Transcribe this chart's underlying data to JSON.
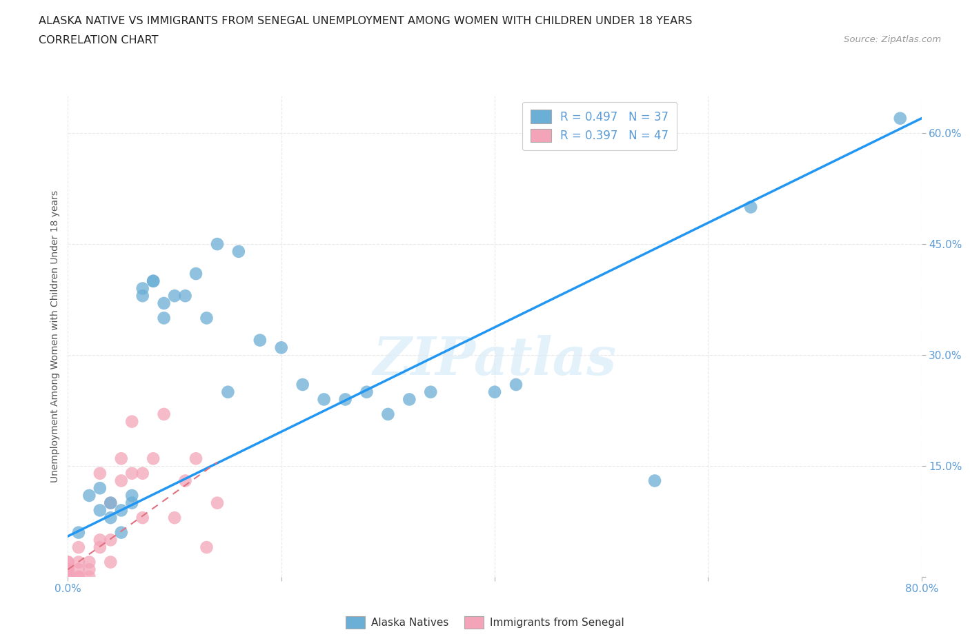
{
  "title_line1": "ALASKA NATIVE VS IMMIGRANTS FROM SENEGAL UNEMPLOYMENT AMONG WOMEN WITH CHILDREN UNDER 18 YEARS",
  "title_line2": "CORRELATION CHART",
  "source": "Source: ZipAtlas.com",
  "ylabel": "Unemployment Among Women with Children Under 18 years",
  "watermark": "ZIPatlas",
  "xlim": [
    0.0,
    0.8
  ],
  "ylim": [
    0.0,
    0.65
  ],
  "blue_color": "#6baed6",
  "pink_color": "#f4a4b8",
  "line_blue": "#2196F3",
  "line_pink": "#e07080",
  "background": "#ffffff",
  "grid_color": "#e8e8e8",
  "alaska_x": [
    0.01,
    0.02,
    0.03,
    0.03,
    0.04,
    0.04,
    0.05,
    0.05,
    0.06,
    0.06,
    0.07,
    0.07,
    0.08,
    0.08,
    0.09,
    0.09,
    0.1,
    0.11,
    0.12,
    0.13,
    0.14,
    0.15,
    0.16,
    0.18,
    0.2,
    0.22,
    0.24,
    0.26,
    0.28,
    0.3,
    0.32,
    0.34,
    0.4,
    0.42,
    0.55,
    0.64,
    0.78
  ],
  "alaska_y": [
    0.06,
    0.11,
    0.12,
    0.09,
    0.1,
    0.08,
    0.09,
    0.06,
    0.11,
    0.1,
    0.38,
    0.39,
    0.4,
    0.4,
    0.37,
    0.35,
    0.38,
    0.38,
    0.41,
    0.35,
    0.45,
    0.25,
    0.44,
    0.32,
    0.31,
    0.26,
    0.24,
    0.24,
    0.25,
    0.22,
    0.24,
    0.25,
    0.25,
    0.26,
    0.13,
    0.5,
    0.62
  ],
  "senegal_x": [
    0.0,
    0.0,
    0.0,
    0.0,
    0.0,
    0.0,
    0.0,
    0.0,
    0.0,
    0.0,
    0.0,
    0.0,
    0.0,
    0.0,
    0.0,
    0.0,
    0.0,
    0.0,
    0.0,
    0.0,
    0.01,
    0.01,
    0.01,
    0.01,
    0.01,
    0.02,
    0.02,
    0.02,
    0.03,
    0.03,
    0.03,
    0.04,
    0.04,
    0.04,
    0.05,
    0.05,
    0.06,
    0.06,
    0.07,
    0.07,
    0.08,
    0.09,
    0.1,
    0.11,
    0.12,
    0.13,
    0.14
  ],
  "senegal_y": [
    0.0,
    0.0,
    0.0,
    0.0,
    0.0,
    0.0,
    0.0,
    0.0,
    0.0,
    0.0,
    0.0,
    0.0,
    0.0,
    0.0,
    0.0,
    0.01,
    0.01,
    0.01,
    0.02,
    0.02,
    0.0,
    0.0,
    0.01,
    0.02,
    0.04,
    0.0,
    0.01,
    0.02,
    0.04,
    0.05,
    0.14,
    0.02,
    0.05,
    0.1,
    0.13,
    0.16,
    0.14,
    0.21,
    0.08,
    0.14,
    0.16,
    0.22,
    0.08,
    0.13,
    0.16,
    0.04,
    0.1
  ],
  "blue_regression_x0": 0.0,
  "blue_regression_y0": 0.055,
  "blue_regression_x1": 0.8,
  "blue_regression_y1": 0.62,
  "pink_regression_x0": 0.0,
  "pink_regression_y0": 0.01,
  "pink_regression_x1": 0.14,
  "pink_regression_y1": 0.155
}
